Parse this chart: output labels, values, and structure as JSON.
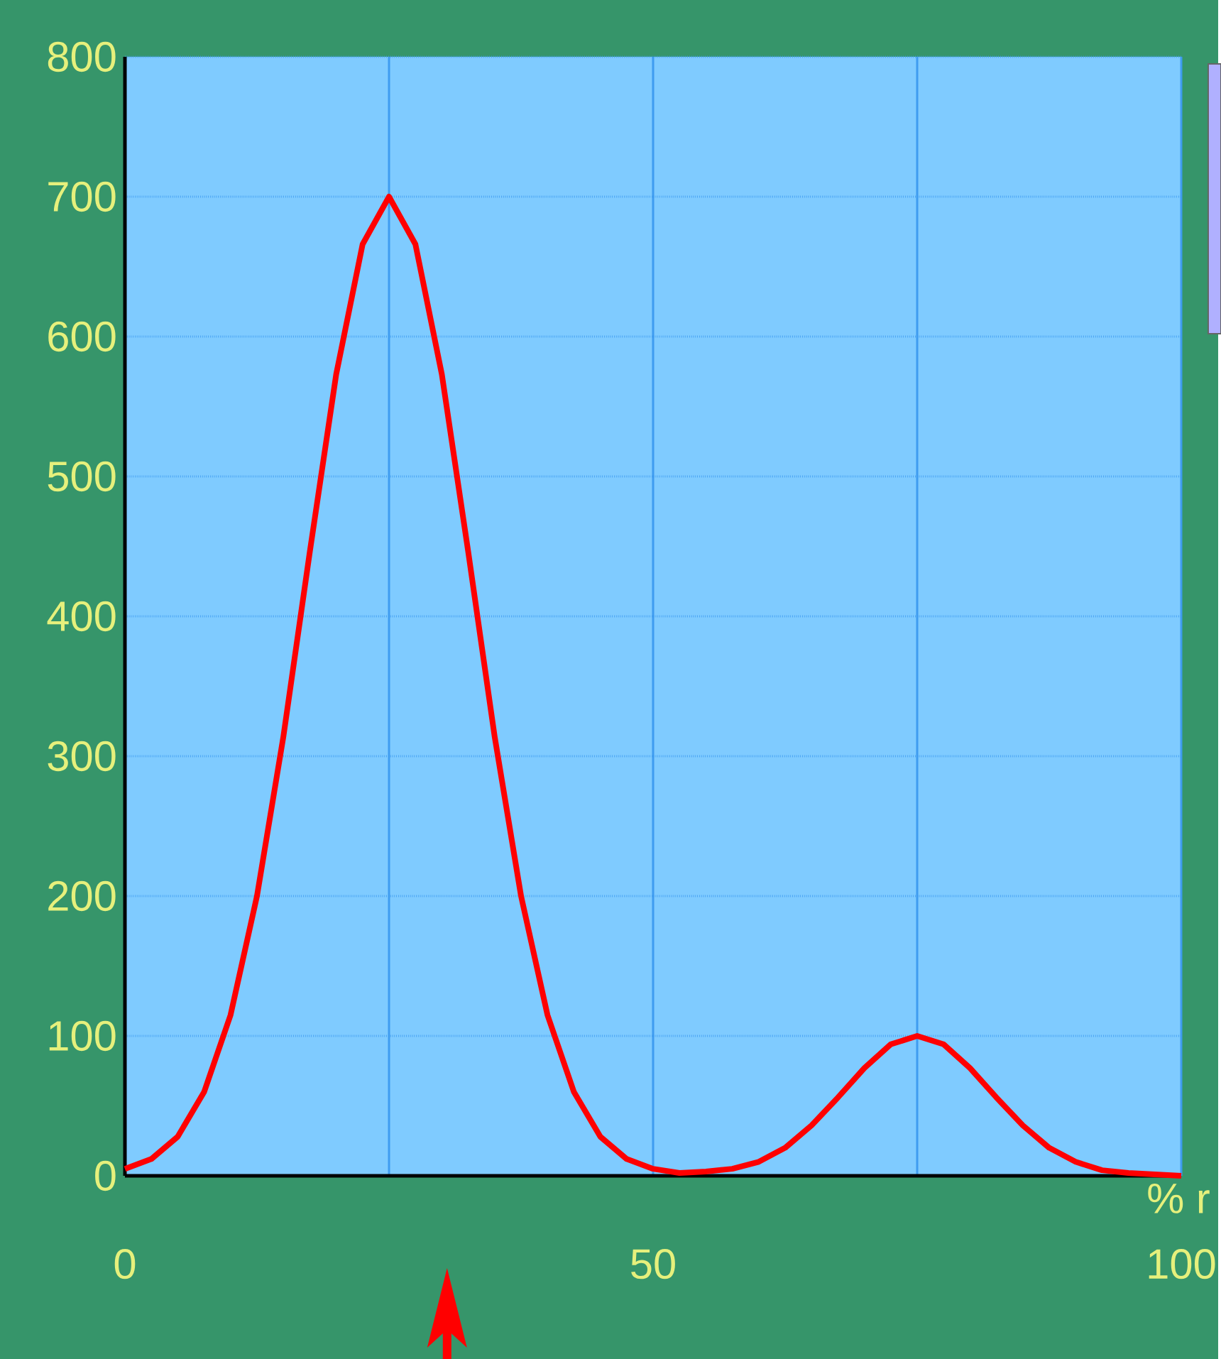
{
  "chart_data": {
    "type": "line",
    "xlabel": "% r",
    "x": [
      0,
      2.5,
      5,
      7.5,
      10,
      12.5,
      15,
      17.5,
      20,
      22.5,
      25,
      27.5,
      30,
      32.5,
      35,
      37.5,
      40,
      42.5,
      45,
      47.5,
      50,
      52.5,
      55,
      57.5,
      60,
      62.5,
      65,
      67.5,
      70,
      72.5,
      75,
      77.5,
      80,
      82.5,
      85,
      87.5,
      90,
      92.5,
      95,
      97.5,
      100
    ],
    "series": [
      {
        "color": "#ff0000",
        "values": [
          5,
          12,
          28,
          60,
          115,
          200,
          314,
          446,
          573,
          666,
          700,
          666,
          573,
          446,
          314,
          200,
          115,
          60,
          28,
          12,
          5,
          2,
          3,
          5,
          10,
          20,
          36,
          56,
          77,
          94,
          100,
          94,
          77,
          56,
          36,
          20,
          10,
          4,
          2,
          1,
          0
        ]
      }
    ],
    "xlim": [
      0,
      100
    ],
    "ylim": [
      0,
      800
    ],
    "xticks": [
      0,
      {
        "value": 25,
        "label": null
      },
      50,
      {
        "value": 75,
        "label": null
      },
      100
    ],
    "yticks": [
      0,
      100,
      200,
      300,
      400,
      500,
      600,
      700,
      800
    ],
    "grid": true
  }
}
